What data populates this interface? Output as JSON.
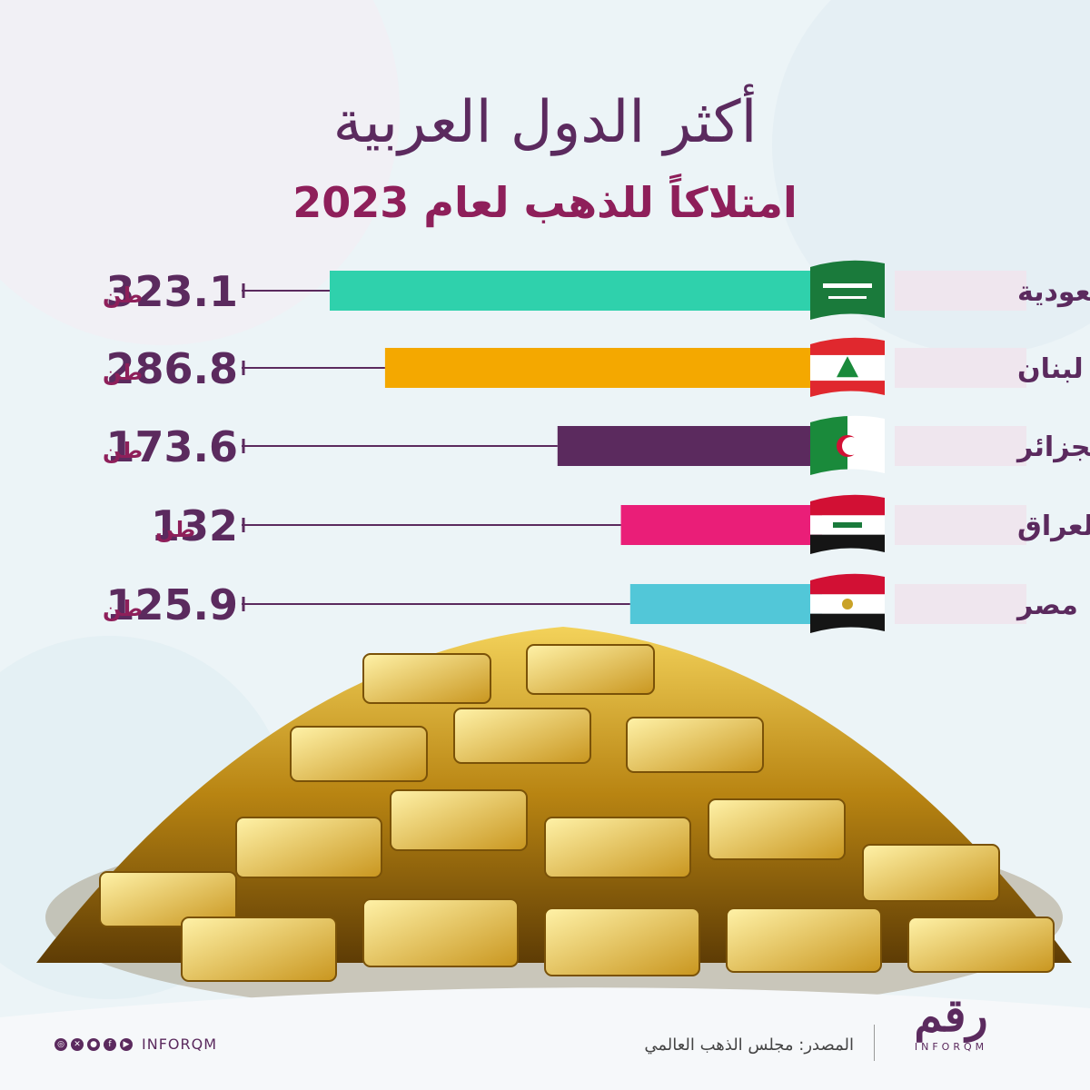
{
  "header": {
    "title_line1": "أكثر الدول العربية",
    "title_line2": "امتلاكاً للذهب لعام 2023"
  },
  "chart_data": {
    "type": "bar",
    "orientation": "horizontal",
    "unit": "طن",
    "categories": [
      "السعودية",
      "لبنان",
      "الجزائر",
      "العراق",
      "مصر"
    ],
    "values": [
      323.1,
      286.8,
      173.6,
      132,
      125.9
    ],
    "value_labels": [
      "323.1",
      "286.8",
      "173.6",
      "132",
      "125.9"
    ],
    "colors": [
      "#2fd1ac",
      "#f4a800",
      "#5b2a5e",
      "#ea1e78",
      "#52c7d8"
    ],
    "flags": [
      "saudi-flag-icon",
      "lebanon-flag-icon",
      "algeria-flag-icon",
      "iraq-flag-icon",
      "egypt-flag-icon"
    ]
  },
  "footer": {
    "source": "المصدر: مجلس الذهب العالمي",
    "handle": "INFORQM",
    "logo_arabic": "رقم",
    "logo_latin": "INFORQM"
  }
}
